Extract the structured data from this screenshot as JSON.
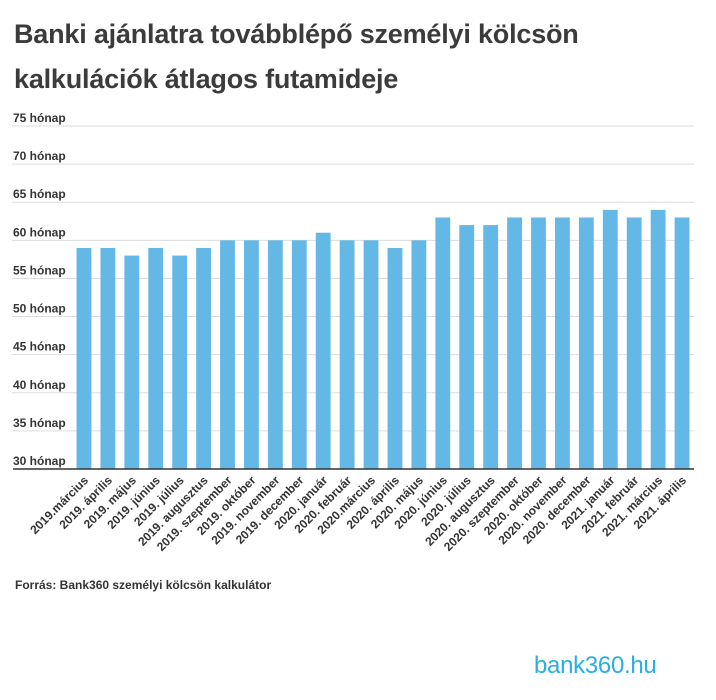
{
  "title": "Banki ajánlatra továbblépő személyi kölcsön kalkulációk átlagos futamideje",
  "source": "Forrás: Bank360 személyi kölcsön kalkulátor",
  "logo": "bank360.hu",
  "colors": {
    "bar": "#63b8e6",
    "grid": "#dddddd",
    "axis": "#333333",
    "text": "#333333"
  },
  "chart_data": {
    "type": "bar",
    "categories": [
      "2019.március",
      "2019. április",
      "2019. május",
      "2019. június",
      "2019. július",
      "2019. augusztus",
      "2019. szeptember",
      "2019. október",
      "2019. november",
      "2019. december",
      "2020. január",
      "2020. február",
      "2020.március",
      "2020. április",
      "2020. május",
      "2020. június",
      "2020. július",
      "2020. augusztus",
      "2020. szeptember",
      "2020. október",
      "2020. november",
      "2020. december",
      "2021. január",
      "2021. február",
      "2021. március",
      "2021. április"
    ],
    "values": [
      59,
      59,
      58,
      59,
      58,
      59,
      60,
      60,
      60,
      60,
      61,
      60,
      60,
      59,
      60,
      63,
      62,
      62,
      63,
      63,
      63,
      63,
      64,
      63,
      64,
      63
    ],
    "ylim": [
      30,
      75
    ],
    "yticks": [
      {
        "value": 75,
        "label": "75 hónap"
      },
      {
        "value": 70,
        "label": "70 hónap"
      },
      {
        "value": 65,
        "label": "65 hónap"
      },
      {
        "value": 60,
        "label": "60 hónap"
      },
      {
        "value": 55,
        "label": "55 hónap"
      },
      {
        "value": 50,
        "label": "50 hónap"
      },
      {
        "value": 45,
        "label": "45 hónap"
      },
      {
        "value": 40,
        "label": "40 hónap"
      },
      {
        "value": 35,
        "label": "35 hónap"
      },
      {
        "value": 30,
        "label": "30 hónap"
      }
    ],
    "grid": true
  }
}
